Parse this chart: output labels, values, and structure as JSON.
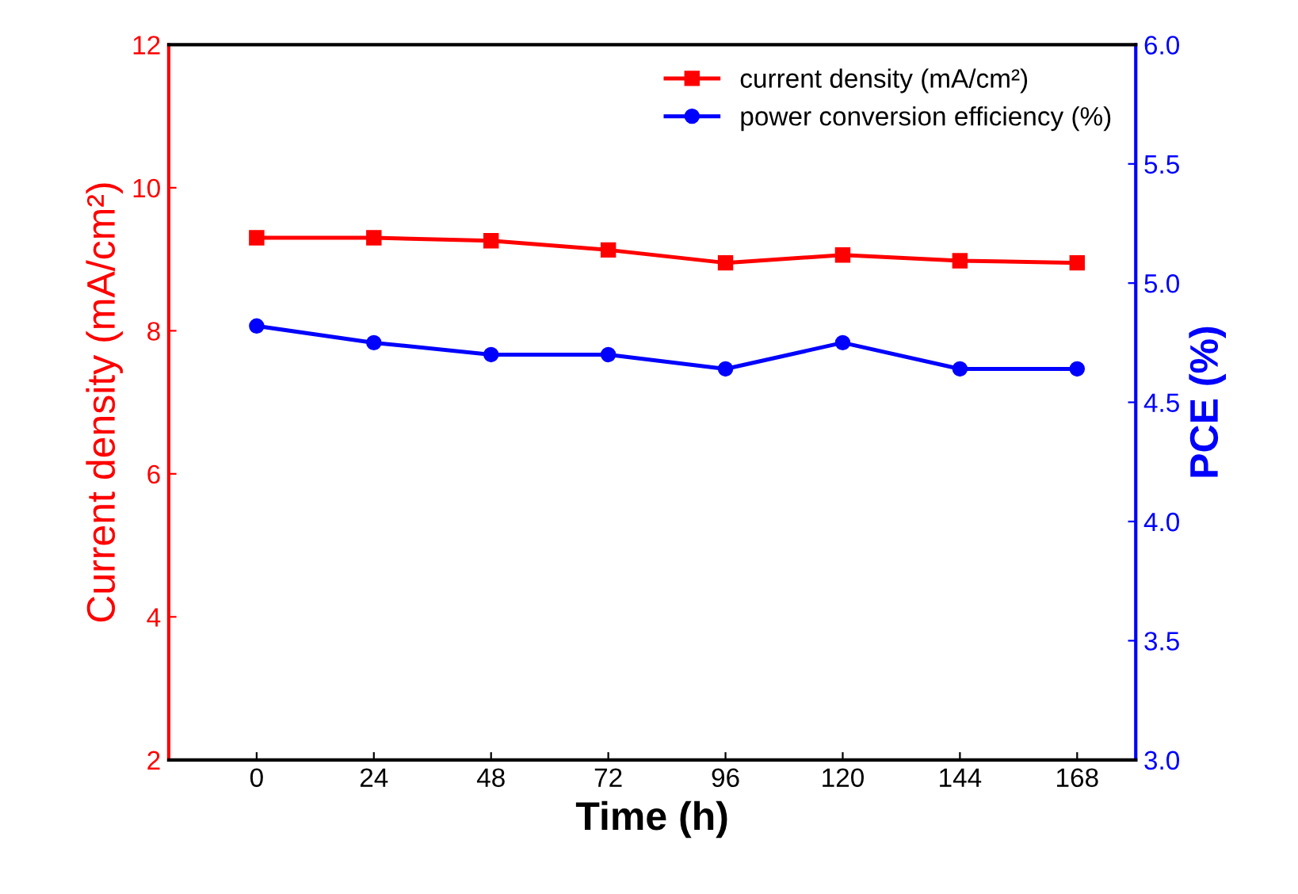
{
  "chart_data": {
    "type": "line",
    "xlabel": "Time (h)",
    "ylabel": "Current density (mA/cm²)",
    "y2label": "PCE (%)",
    "x": [
      0,
      24,
      48,
      72,
      96,
      120,
      144,
      168
    ],
    "xlim": [
      -18,
      180
    ],
    "xticks": [
      0,
      24,
      48,
      72,
      96,
      120,
      144,
      168
    ],
    "ylim": [
      2,
      12
    ],
    "yticks": [
      2,
      4,
      6,
      8,
      10,
      12
    ],
    "y2lim": [
      3,
      6
    ],
    "y2ticks": [
      {
        "value": 3,
        "label": "3.0"
      },
      {
        "value": 3.5,
        "label": "3.5"
      },
      {
        "value": 4,
        "label": "4.0"
      },
      {
        "value": 4.5,
        "label": "4.5"
      },
      {
        "value": 5,
        "label": "5.0"
      },
      {
        "value": 5.5,
        "label": "5.5"
      },
      {
        "value": 6,
        "label": "6.0"
      }
    ],
    "legend": "top right",
    "grid": false,
    "line_style": "solid",
    "series": [
      {
        "name": "current density (mA/cm²)",
        "color": "#ff0000",
        "marker": "square",
        "values": [
          9.3,
          9.3,
          9.26,
          9.13,
          8.95,
          9.06,
          8.98,
          8.95
        ]
      },
      {
        "name": "power conversion efficiency (%)",
        "color": "#0000ff",
        "marker": "circle",
        "axis": "y2",
        "values": [
          4.82,
          4.75,
          4.7,
          4.7,
          4.64,
          4.75,
          4.64,
          4.64
        ]
      }
    ]
  }
}
